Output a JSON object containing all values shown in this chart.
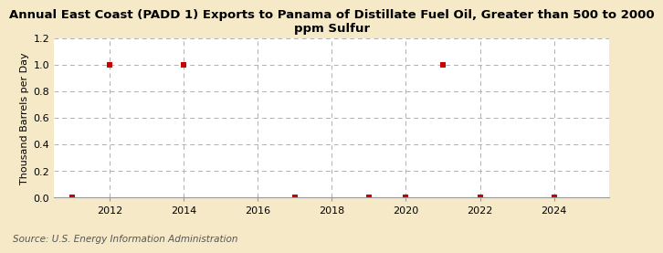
{
  "title": "Annual East Coast (PADD 1) Exports to Panama of Distillate Fuel Oil, Greater than 500 to 2000\nppm Sulfur",
  "ylabel": "Thousand Barrels per Day",
  "source": "Source: U.S. Energy Information Administration",
  "figure_bg": "#f5e9c8",
  "axes_bg": "#ffffff",
  "data_x": [
    2011.0,
    2012.0,
    2014.0,
    2017.0,
    2019.0,
    2020.0,
    2021.0,
    2022.0,
    2024.0
  ],
  "data_y": [
    0.0,
    1.0,
    1.0,
    0.0,
    0.0,
    0.0,
    1.0,
    0.0,
    0.0
  ],
  "marker_color": "#cc0000",
  "marker_size": 4,
  "xlim": [
    2010.5,
    2025.5
  ],
  "ylim": [
    0.0,
    1.2
  ],
  "yticks": [
    0.0,
    0.2,
    0.4,
    0.6,
    0.8,
    1.0,
    1.2
  ],
  "xticks": [
    2012,
    2014,
    2016,
    2018,
    2020,
    2022,
    2024
  ],
  "grid_color": "#b0b0b0",
  "title_fontsize": 9.5,
  "label_fontsize": 8,
  "tick_fontsize": 8,
  "source_fontsize": 7.5
}
